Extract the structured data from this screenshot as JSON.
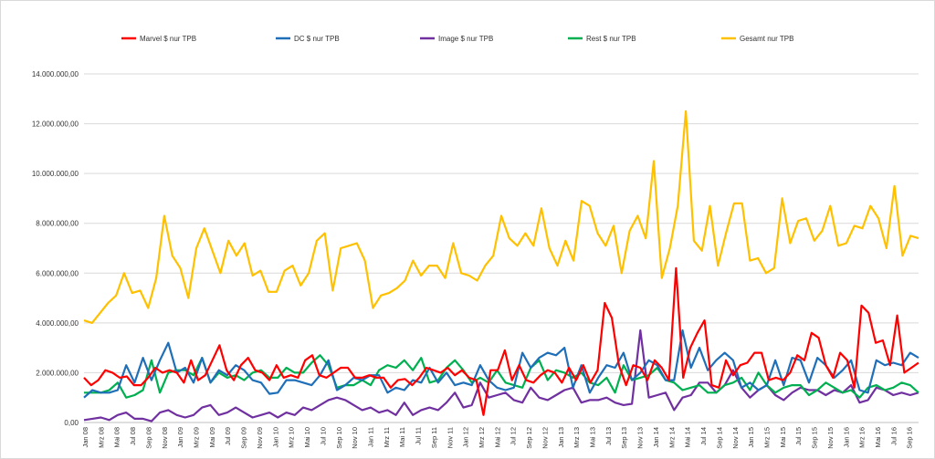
{
  "chart_data": {
    "type": "line",
    "title": "",
    "xlabel": "",
    "ylabel": "",
    "ylim": [
      0,
      14000000
    ],
    "y_ticks": [
      "0,00",
      "2.000.000,00",
      "4.000.000,00",
      "6.000.000,00",
      "8.000.000,00",
      "10.000.000,00",
      "12.000.000,00",
      "14.000.000,00"
    ],
    "grid": "horizontal",
    "legend_position": "top",
    "x_labels": [
      "Jan 08",
      "Mrz 08",
      "Mai 08",
      "Jul 08",
      "Sep 08",
      "Nov 08",
      "Jan 09",
      "Mrz 09",
      "Mai 09",
      "Jul 09",
      "Sep 09",
      "Nov 09",
      "Jan 10",
      "Mrz 10",
      "Mai 10",
      "Jul 10",
      "Sep 10",
      "Nov 10",
      "Jan 11",
      "Mrz 11",
      "Mai 11",
      "Jul 11",
      "Sep 11",
      "Nov 11",
      "Jan 12",
      "Mrz 12",
      "Mai 12",
      "Jul 12",
      "Sep 12",
      "Nov 12",
      "Jan 13",
      "Mrz 13",
      "Mai 13",
      "Jul 13",
      "Sep 13",
      "Nov 13",
      "Jan 14",
      "Mrz 14",
      "Mai 14",
      "Jul 14",
      "Sep 14",
      "Nov 14",
      "Jan 15",
      "Mrz 15",
      "Mai 15",
      "Jul 15",
      "Sep 15",
      "Nov 15",
      "Jan 16",
      "Mrz 16",
      "Mai 16",
      "Jul 16",
      "Sep 16"
    ],
    "series": [
      {
        "name": "Marvel $ nur TPB",
        "color": "#ff0000",
        "values": [
          1.8,
          1.5,
          1.7,
          2.1,
          2.0,
          1.8,
          1.85,
          1.5,
          1.5,
          1.8,
          2.2,
          2.0,
          2.1,
          2.0,
          1.6,
          2.5,
          1.7,
          1.9,
          2.5,
          3.1,
          2.1,
          1.7,
          2.3,
          2.6,
          2.1,
          2.0,
          1.7,
          2.3,
          1.8,
          1.9,
          1.8,
          2.5,
          2.7,
          1.9,
          1.8,
          2.0,
          2.2,
          2.2,
          1.8,
          1.8,
          1.9,
          1.8,
          1.8,
          1.4,
          1.7,
          1.75,
          1.5,
          1.8,
          2.2,
          2.1,
          2.0,
          2.2,
          1.9,
          2.1,
          1.8,
          1.7,
          0.3,
          2.1,
          2.1,
          2.9,
          1.7,
          2.3,
          1.7,
          1.6,
          1.9,
          2.1,
          2.0,
          1.6,
          2.2,
          1.7,
          2.3,
          1.6,
          2.1,
          4.8,
          4.2,
          2.3,
          1.5,
          2.3,
          2.2,
          1.7,
          2.5,
          2.2,
          1.7,
          6.2,
          1.8,
          3.0,
          3.6,
          4.1,
          1.5,
          1.4,
          2.5,
          1.9,
          2.3,
          2.4,
          2.8,
          2.8,
          1.7,
          1.8,
          1.7,
          2.0,
          2.7,
          2.5,
          3.6,
          3.4,
          2.3,
          1.8,
          2.8,
          2.5,
          1.4,
          4.7,
          4.4,
          3.2,
          3.3,
          2.3,
          4.3,
          2.0,
          2.2,
          2.4
        ]
      },
      {
        "name": "DC $ nur TPB",
        "color": "#1f6fb8",
        "values": [
          1.0,
          1.3,
          1.2,
          1.2,
          1.3,
          2.3,
          1.6,
          2.6,
          1.7,
          2.5,
          3.2,
          2.0,
          2.2,
          1.6,
          2.6,
          1.6,
          2.1,
          1.9,
          2.3,
          2.1,
          1.7,
          1.6,
          1.15,
          1.2,
          1.7,
          1.7,
          1.6,
          1.5,
          1.9,
          2.5,
          1.3,
          1.5,
          1.8,
          1.7,
          1.9,
          1.9,
          1.2,
          1.4,
          1.3,
          1.7,
          1.6,
          2.2,
          1.6,
          2.0,
          1.5,
          1.6,
          1.5,
          2.3,
          1.7,
          1.4,
          1.3,
          1.4,
          2.8,
          2.2,
          2.6,
          2.8,
          2.7,
          3.0,
          1.4,
          2.3,
          1.2,
          1.8,
          2.3,
          2.2,
          2.8,
          1.7,
          2.0,
          2.5,
          2.3,
          1.7,
          1.7,
          3.7,
          2.2,
          3.0,
          2.1,
          2.5,
          2.8,
          2.5,
          1.4,
          1.6,
          1.3,
          1.5,
          2.5,
          1.5,
          2.6,
          2.5,
          1.6,
          2.6,
          2.3,
          1.8,
          2.1,
          2.5,
          1.3,
          1.2,
          2.5,
          2.3,
          2.4,
          2.3,
          2.8,
          2.6
        ]
      },
      {
        "name": "Image $ nur TPB",
        "color": "#7030a0",
        "values": [
          0.1,
          0.15,
          0.2,
          0.1,
          0.3,
          0.4,
          0.15,
          0.15,
          0.05,
          0.4,
          0.5,
          0.3,
          0.2,
          0.3,
          0.6,
          0.7,
          0.3,
          0.4,
          0.6,
          0.4,
          0.2,
          0.3,
          0.4,
          0.2,
          0.4,
          0.3,
          0.6,
          0.5,
          0.7,
          0.9,
          1.0,
          0.9,
          0.7,
          0.5,
          0.6,
          0.4,
          0.5,
          0.3,
          0.8,
          0.3,
          0.5,
          0.6,
          0.5,
          0.8,
          1.2,
          0.6,
          0.7,
          1.6,
          1.0,
          1.1,
          1.2,
          0.9,
          0.8,
          1.4,
          1.0,
          0.9,
          1.1,
          1.3,
          1.4,
          0.8,
          0.9,
          0.9,
          1.0,
          0.8,
          0.7,
          0.75,
          3.7,
          1.0,
          1.1,
          1.2,
          0.5,
          1.0,
          1.1,
          1.6,
          1.6,
          1.2,
          1.5,
          2.1,
          1.4,
          1.0,
          1.3,
          1.5,
          1.1,
          0.9,
          1.2,
          1.4,
          1.3,
          1.3,
          1.1,
          1.3,
          1.2,
          1.5,
          0.8,
          0.9,
          1.4,
          1.3,
          1.1,
          1.2,
          1.1,
          1.2
        ]
      },
      {
        "name": "Rest $ nur TPB",
        "color": "#00b050",
        "values": [
          1.2,
          1.2,
          1.2,
          1.3,
          1.6,
          1.0,
          1.1,
          1.3,
          2.5,
          1.2,
          2.0,
          2.1,
          2.1,
          1.9,
          2.6,
          1.6,
          2.0,
          1.8,
          1.9,
          1.7,
          2.0,
          2.1,
          1.8,
          1.8,
          2.2,
          2.0,
          2.0,
          2.4,
          2.7,
          2.3,
          1.4,
          1.5,
          1.5,
          1.7,
          1.5,
          2.1,
          2.3,
          2.2,
          2.5,
          2.1,
          2.6,
          1.6,
          1.7,
          2.2,
          2.5,
          2.1,
          1.6,
          1.8,
          1.6,
          2.1,
          1.6,
          1.5,
          1.4,
          2.2,
          2.5,
          1.7,
          2.1,
          2.0,
          1.8,
          2.0,
          1.6,
          1.5,
          1.8,
          1.2,
          2.3,
          1.7,
          1.8,
          1.9,
          2.2,
          1.7,
          1.6,
          1.3,
          1.4,
          1.5,
          1.2,
          1.2,
          1.5,
          1.6,
          1.8,
          1.3,
          2.0,
          1.5,
          1.2,
          1.4,
          1.5,
          1.5,
          1.1,
          1.3,
          1.6,
          1.4,
          1.2,
          1.3,
          1.0,
          1.4,
          1.5,
          1.3,
          1.4,
          1.6,
          1.5,
          1.2
        ]
      },
      {
        "name": "Gesamt nur TPB",
        "color": "#ffc000",
        "values": [
          4.1,
          4.0,
          4.4,
          4.8,
          5.1,
          6.0,
          5.2,
          5.3,
          4.6,
          5.8,
          8.3,
          6.7,
          6.2,
          5.0,
          7.0,
          7.8,
          6.9,
          6.0,
          7.3,
          6.7,
          7.2,
          5.9,
          6.1,
          5.25,
          5.25,
          6.1,
          6.3,
          5.5,
          6.0,
          7.3,
          7.6,
          5.3,
          7.0,
          7.1,
          7.2,
          6.5,
          4.6,
          5.1,
          5.2,
          5.4,
          5.7,
          6.5,
          5.9,
          6.3,
          6.3,
          5.8,
          7.2,
          6.0,
          5.9,
          5.7,
          6.3,
          6.7,
          8.3,
          7.4,
          7.1,
          7.6,
          7.1,
          8.6,
          7.0,
          6.3,
          7.3,
          6.5,
          8.9,
          8.7,
          7.6,
          7.1,
          7.9,
          6.0,
          7.7,
          8.3,
          7.4,
          10.5,
          5.8,
          7.0,
          8.7,
          12.5,
          7.3,
          6.9,
          8.7,
          6.3,
          7.6,
          8.8,
          8.8,
          6.5,
          6.6,
          6.0,
          6.2,
          9.0,
          7.2,
          8.1,
          8.2,
          7.3,
          7.7,
          8.7,
          7.1,
          7.2,
          7.9,
          7.8,
          8.7,
          8.2,
          7.0,
          9.5,
          6.7,
          7.5,
          7.4
        ]
      }
    ]
  }
}
